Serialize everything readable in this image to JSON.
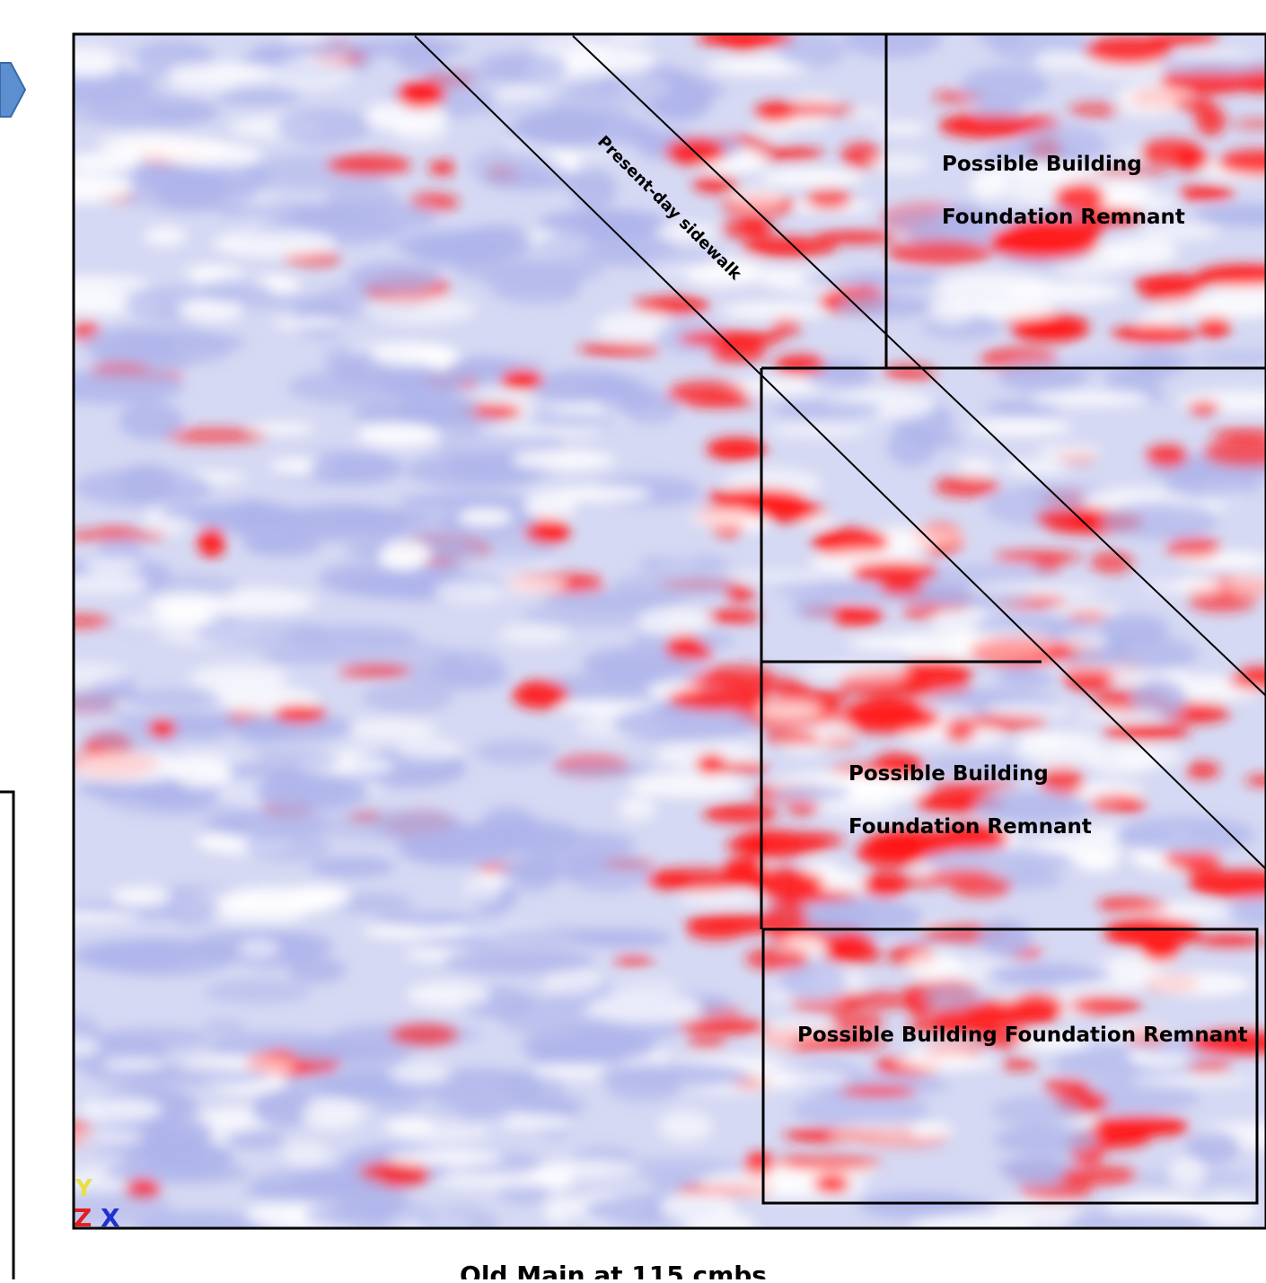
{
  "sidewalk_label": "Present-day sidewalk",
  "upper_box": {
    "line1": "Possible Building",
    "line2": "Foundation Remnant"
  },
  "middle_box": {
    "line1": "Possible Building",
    "line2": "Foundation Remnant"
  },
  "lower_box": {
    "label": "Possible Building Foundation Remnant"
  },
  "axis_indicator": {
    "y": "Y",
    "z": "Z",
    "x": "X"
  },
  "caption": "Old Main at 115 cmbs"
}
